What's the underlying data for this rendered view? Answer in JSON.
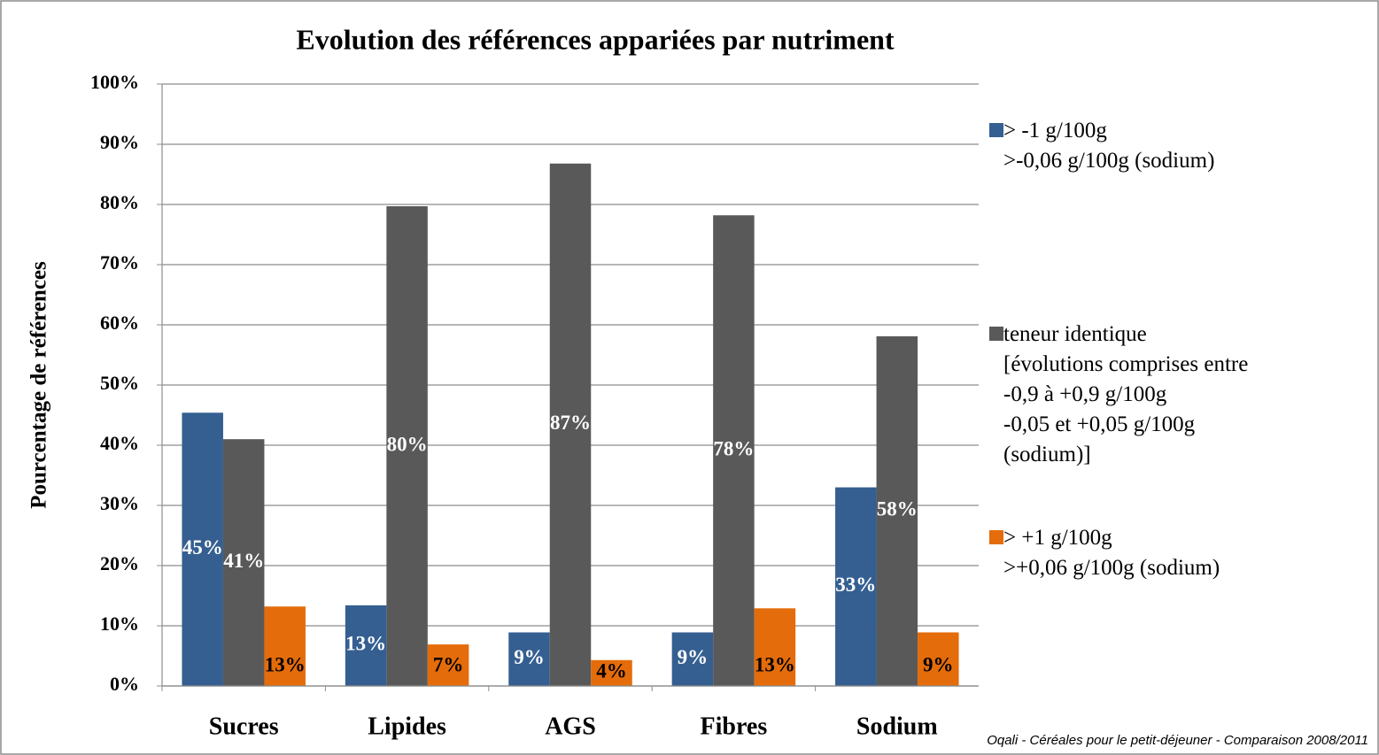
{
  "chart_data": {
    "type": "bar",
    "title": "Evolution des références appariées par nutriment",
    "y_label": "Pourcentage de références",
    "source": "Oqali  - Céréales pour le petit-déjeuner - Comparaison 2008/2011",
    "categories": [
      "Sucres",
      "Lipides",
      "AGS",
      "Fibres",
      "Sodium"
    ],
    "series": [
      {
        "name": "> -1 g/100g\n>-0,06 g/100g (sodium)",
        "color": "#355f91",
        "values": [
          45.4,
          13.4,
          8.9,
          8.9,
          33
        ],
        "value_labels": [
          "45%",
          "13%",
          "9%",
          "9%",
          "33%"
        ]
      },
      {
        "name": "teneur identique\n[évolutions comprises entre\n-0,9 à +0,9 g/100g\n-0,05 et +0,05 g/100g\n(sodium)]",
        "color": "#595959",
        "values": [
          41,
          79.7,
          86.8,
          78.2,
          58.1
        ],
        "value_labels": [
          "41%",
          "80%",
          "87%",
          "78%",
          "58%"
        ]
      },
      {
        "name": "> +1 g/100g\n>+0,06 g/100g (sodium)",
        "color": "#e46c0a",
        "values": [
          13.2,
          6.9,
          4.3,
          12.9,
          8.9
        ],
        "value_labels": [
          "13%",
          "7%",
          "4%",
          "13%",
          "9%"
        ]
      }
    ],
    "ylim": [
      0,
      100
    ],
    "yticks": [
      {
        "value": 0,
        "label": "0%"
      },
      {
        "value": 10,
        "label": "10%"
      },
      {
        "value": 20,
        "label": "20%"
      },
      {
        "value": 30,
        "label": "30%"
      },
      {
        "value": 40,
        "label": "40%"
      },
      {
        "value": 50,
        "label": "50%"
      },
      {
        "value": 60,
        "label": "60%"
      },
      {
        "value": 70,
        "label": "70%"
      },
      {
        "value": 80,
        "label": "80%"
      },
      {
        "value": 90,
        "label": "90%"
      },
      {
        "value": 100,
        "label": "100%"
      }
    ],
    "grid": true
  }
}
